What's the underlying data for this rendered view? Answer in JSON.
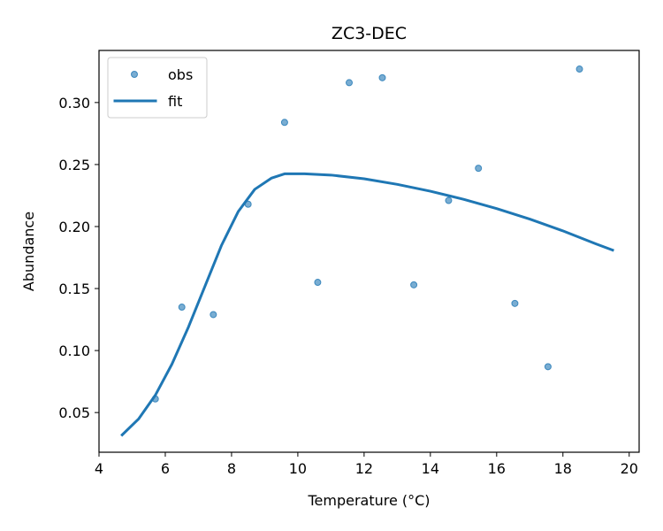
{
  "chart_data": {
    "type": "scatter",
    "title": "ZC3-DEC",
    "xlabel": "Temperature (°C)",
    "ylabel": "Abundance",
    "xlim": [
      4.0,
      20.3
    ],
    "ylim": [
      0.018,
      0.342
    ],
    "xticks": [
      4,
      6,
      8,
      10,
      12,
      14,
      16,
      18,
      20
    ],
    "xtick_labels": [
      "4",
      "6",
      "8",
      "10",
      "12",
      "14",
      "16",
      "18",
      "20"
    ],
    "yticks": [
      0.05,
      0.1,
      0.15,
      0.2,
      0.25,
      0.3
    ],
    "ytick_labels": [
      "0.05",
      "0.10",
      "0.15",
      "0.20",
      "0.25",
      "0.30"
    ],
    "grid": false,
    "legend_position": "upper-left",
    "series": [
      {
        "name": "obs",
        "kind": "scatter",
        "color": "#1f77b4",
        "points": [
          {
            "x": 5.7,
            "y": 0.061
          },
          {
            "x": 6.5,
            "y": 0.135
          },
          {
            "x": 7.45,
            "y": 0.129
          },
          {
            "x": 8.5,
            "y": 0.218
          },
          {
            "x": 9.6,
            "y": 0.284
          },
          {
            "x": 10.6,
            "y": 0.155
          },
          {
            "x": 11.55,
            "y": 0.316
          },
          {
            "x": 12.55,
            "y": 0.32
          },
          {
            "x": 13.5,
            "y": 0.153
          },
          {
            "x": 14.55,
            "y": 0.221
          },
          {
            "x": 15.45,
            "y": 0.247
          },
          {
            "x": 16.55,
            "y": 0.138
          },
          {
            "x": 17.55,
            "y": 0.087
          },
          {
            "x": 18.5,
            "y": 0.327
          }
        ]
      },
      {
        "name": "fit",
        "kind": "line",
        "color": "#1f77b4",
        "points": [
          {
            "x": 4.7,
            "y": 0.032
          },
          {
            "x": 5.2,
            "y": 0.045
          },
          {
            "x": 5.7,
            "y": 0.064
          },
          {
            "x": 6.2,
            "y": 0.089
          },
          {
            "x": 6.7,
            "y": 0.119
          },
          {
            "x": 7.2,
            "y": 0.152
          },
          {
            "x": 7.7,
            "y": 0.185
          },
          {
            "x": 8.2,
            "y": 0.212
          },
          {
            "x": 8.7,
            "y": 0.23
          },
          {
            "x": 9.2,
            "y": 0.239
          },
          {
            "x": 9.6,
            "y": 0.2425
          },
          {
            "x": 10.2,
            "y": 0.2425
          },
          {
            "x": 11.0,
            "y": 0.2415
          },
          {
            "x": 12.0,
            "y": 0.2385
          },
          {
            "x": 13.0,
            "y": 0.234
          },
          {
            "x": 14.0,
            "y": 0.2285
          },
          {
            "x": 15.0,
            "y": 0.222
          },
          {
            "x": 16.0,
            "y": 0.2145
          },
          {
            "x": 17.0,
            "y": 0.206
          },
          {
            "x": 18.0,
            "y": 0.1965
          },
          {
            "x": 19.0,
            "y": 0.186
          },
          {
            "x": 19.5,
            "y": 0.181
          }
        ]
      }
    ]
  }
}
